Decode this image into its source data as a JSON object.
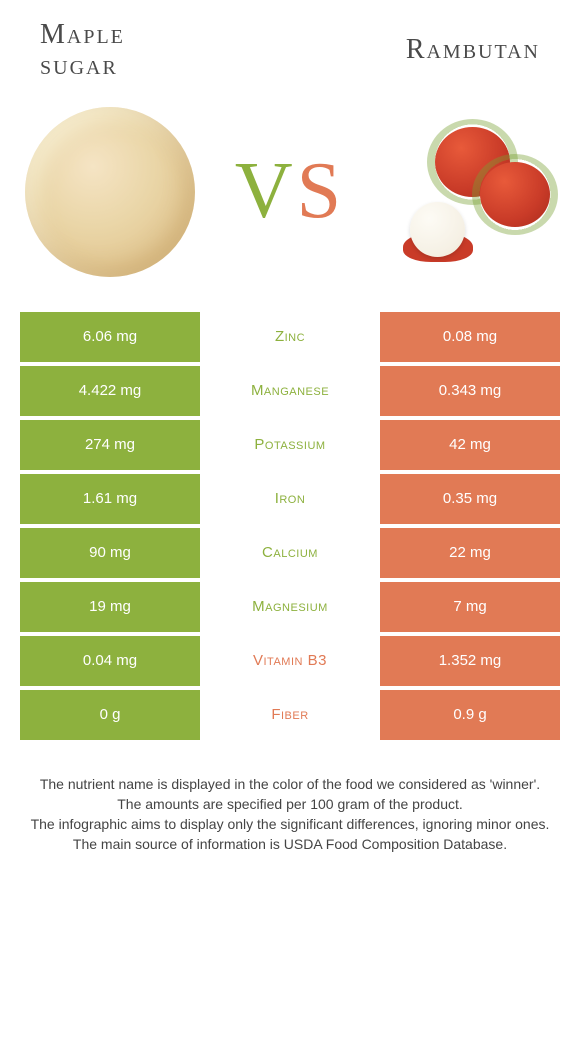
{
  "header": {
    "left_title_line1": "Maple",
    "left_title_line2": "sugar",
    "right_title": "Rambutan",
    "vs_v": "V",
    "vs_s": "S"
  },
  "colors": {
    "left": "#8db13e",
    "right": "#e17a55",
    "background": "#ffffff",
    "text": "#333333"
  },
  "table": {
    "rows": [
      {
        "left": "6.06 mg",
        "label": "Zinc",
        "right": "0.08 mg",
        "winner": "left"
      },
      {
        "left": "4.422 mg",
        "label": "Manganese",
        "right": "0.343 mg",
        "winner": "left"
      },
      {
        "left": "274 mg",
        "label": "Potassium",
        "right": "42 mg",
        "winner": "left"
      },
      {
        "left": "1.61 mg",
        "label": "Iron",
        "right": "0.35 mg",
        "winner": "left"
      },
      {
        "left": "90 mg",
        "label": "Calcium",
        "right": "22 mg",
        "winner": "left"
      },
      {
        "left": "19 mg",
        "label": "Magnesium",
        "right": "7 mg",
        "winner": "left"
      },
      {
        "left": "0.04 mg",
        "label": "Vitamin B3",
        "right": "1.352 mg",
        "winner": "right"
      },
      {
        "left": "0 g",
        "label": "Fiber",
        "right": "0.9 g",
        "winner": "right"
      }
    ]
  },
  "footer": {
    "line1": "The nutrient name is displayed in the color of the food we considered as 'winner'.",
    "line2": "The amounts are specified per 100 gram of the product.",
    "line3": "The infographic aims to display only the significant differences, ignoring minor ones.",
    "line4": "The main source of information is USDA Food Composition Database."
  }
}
